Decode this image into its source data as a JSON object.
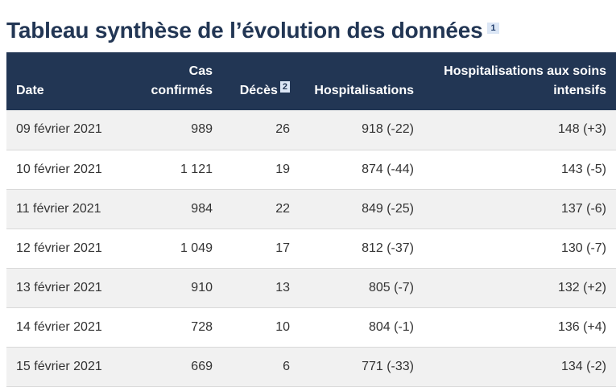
{
  "page": {
    "title": "Tableau synthèse de l’évolution des données",
    "title_footnote": "1"
  },
  "table": {
    "headers": {
      "date": "Date",
      "cases_line1": "Cas",
      "cases_line2": "confirmés",
      "deaths": "Décès",
      "deaths_footnote": "2",
      "hospitalisations": "Hospitalisations",
      "icu_line1": "Hospitalisations aux soins",
      "icu_line2": "intensifs"
    },
    "rows": [
      {
        "date": "09 février 2021",
        "cases": "989",
        "deaths": "26",
        "hosp": "918 (-22)",
        "icu": "148 (+3)"
      },
      {
        "date": "10 février 2021",
        "cases": "1 121",
        "deaths": "19",
        "hosp": "874 (-44)",
        "icu": "143 (-5)"
      },
      {
        "date": "11 février 2021",
        "cases": "984",
        "deaths": "22",
        "hosp": "849 (-25)",
        "icu": "137 (-6)"
      },
      {
        "date": "12 février 2021",
        "cases": "1 049",
        "deaths": "17",
        "hosp": "812 (-37)",
        "icu": "130 (-7)"
      },
      {
        "date": "13 février 2021",
        "cases": "910",
        "deaths": "13",
        "hosp": "805 (-7)",
        "icu": "132 (+2)"
      },
      {
        "date": "14 février 2021",
        "cases": "728",
        "deaths": "10",
        "hosp": "804 (-1)",
        "icu": "136 (+4)"
      },
      {
        "date": "15 février 2021",
        "cases": "669",
        "deaths": "6",
        "hosp": "771 (-33)",
        "icu": "134 (-2)"
      }
    ]
  },
  "colors": {
    "header_bg": "#223654",
    "title_text": "#223654",
    "badge_bg": "#dbe6f5",
    "row_alt_bg": "#f1f1f1"
  }
}
